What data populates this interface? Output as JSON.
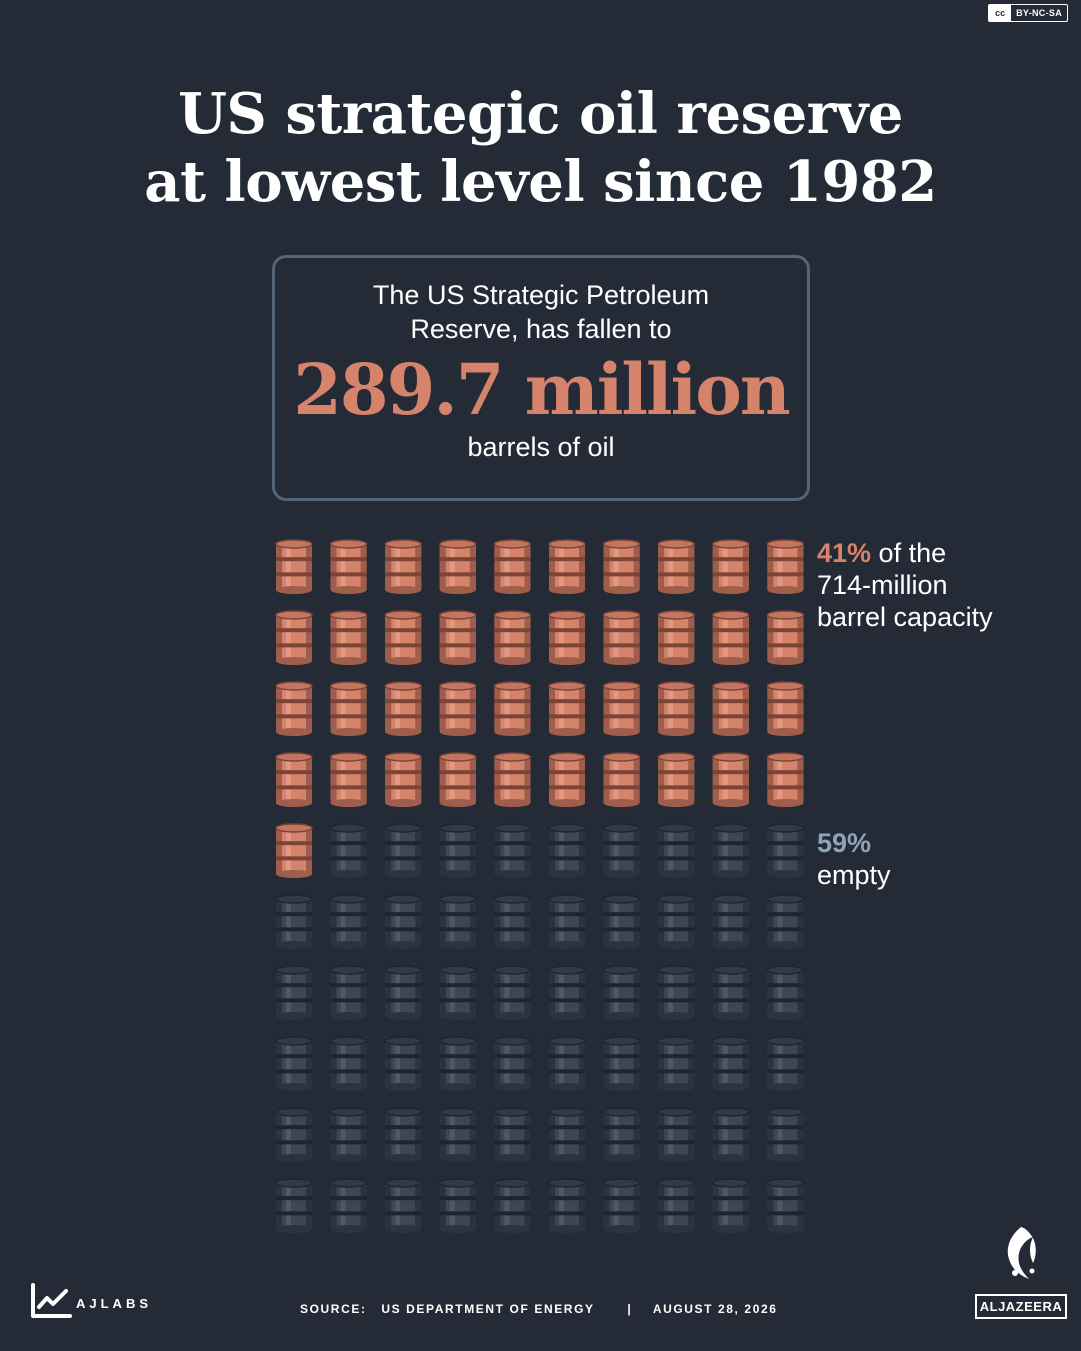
{
  "license": {
    "cc": "cc",
    "text": "BY-NC-SA"
  },
  "title": {
    "line1": "US strategic oil reserve",
    "line2": "at lowest level since 1982"
  },
  "callout": {
    "lead_line1": "The US Strategic Petroleum",
    "lead_line2": "Reserve, has fallen to",
    "value": "289.7 million",
    "unit": "barrels of oil"
  },
  "labels": {
    "full_pct": "41%",
    "full_text1": " of the",
    "full_text2": "714-million",
    "full_text3": "barrel capacity",
    "empty_pct": "59%",
    "empty_text": "empty"
  },
  "colors": {
    "full": "#d6836b",
    "empty": "#3d4655",
    "background": "#252b36",
    "border": "#536579"
  },
  "chart_data": {
    "type": "waffle",
    "total_icons": 100,
    "columns": 10,
    "rows": 10,
    "categories": [
      "Full",
      "Empty"
    ],
    "values": [
      41,
      59
    ],
    "unit": "percent of capacity",
    "icon": "oil-barrel-icon"
  },
  "footer": {
    "brand": "AJLABS",
    "source_label": "SOURCE:",
    "source": "US DEPARTMENT OF ENERGY",
    "separator": "|",
    "date": "AUGUST 28, 2026",
    "publisher": "ALJAZEERA"
  }
}
